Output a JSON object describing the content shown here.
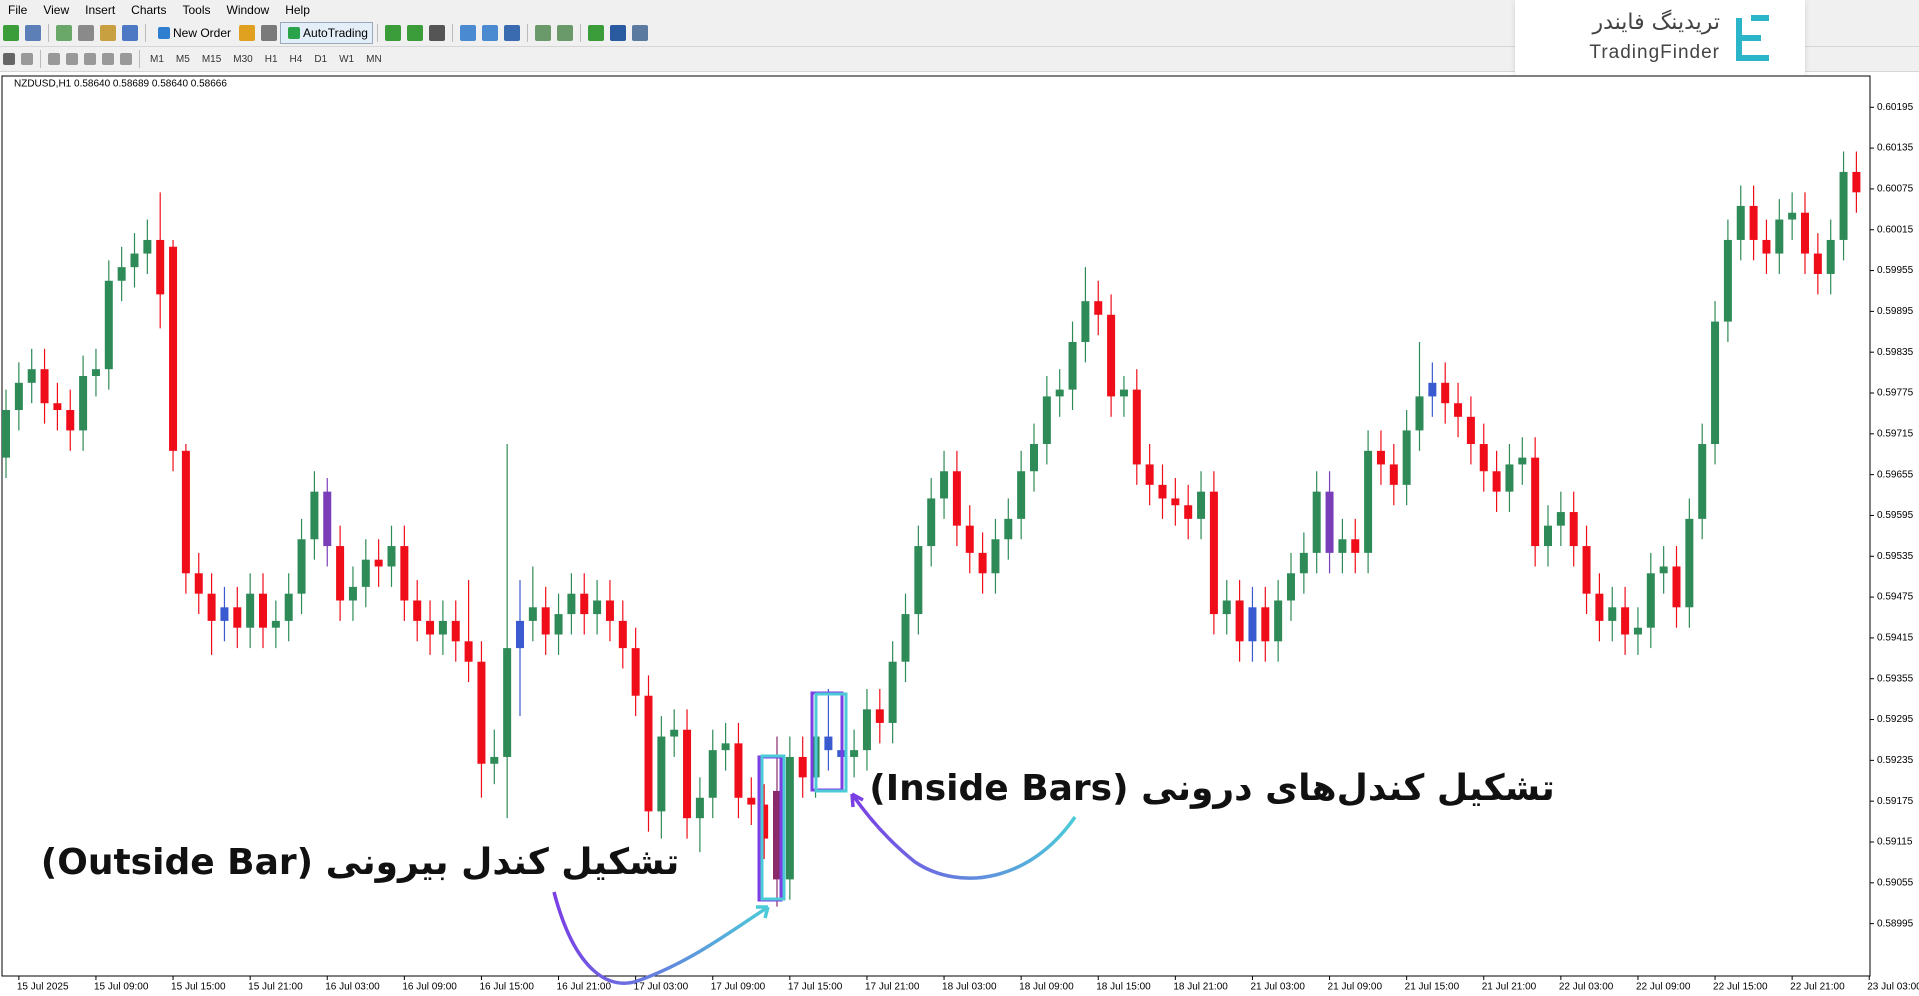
{
  "menu": [
    "File",
    "View",
    "Insert",
    "Charts",
    "Tools",
    "Window",
    "Help"
  ],
  "toolbar": {
    "new_order": "New Order",
    "auto_trading": "AutoTrading",
    "timeframes": [
      "M1",
      "M5",
      "M15",
      "M30",
      "H1",
      "H4",
      "D1",
      "W1",
      "MN"
    ]
  },
  "logo": {
    "fa": "تریدینگ فایندر",
    "en": "TradingFinder"
  },
  "chart_data": {
    "type": "candlestick",
    "symbol_info": "NZDUSD,H1  0.58640 0.58689 0.58640 0.58666",
    "annotations": {
      "inside": "تشکیل کندل‌های درونی (Inside Bars)",
      "outside": "تشکیل کندل بیرونی (Outside Bar)"
    },
    "up_color": "#2e8b57",
    "down_color": "#f00d1a",
    "highlights": [
      {
        "index": 17,
        "color": "#3a5bd0"
      },
      {
        "index": 25,
        "color": "#7a3fb8"
      },
      {
        "index": 40,
        "color": "#3a5bd0"
      },
      {
        "index": 60,
        "color": "#8a2a6a"
      },
      {
        "index": 64,
        "color": "#3a5bd0"
      },
      {
        "index": 65,
        "color": "#3a5bd0"
      },
      {
        "index": 97,
        "color": "#3a5bd0"
      },
      {
        "index": 103,
        "color": "#7a3fb8"
      },
      {
        "index": 111,
        "color": "#3a5bd0"
      }
    ],
    "ylim": [
      0.58918,
      0.60241
    ],
    "yticks": [
      0.60195,
      0.60135,
      0.60075,
      0.60015,
      0.59955,
      0.59895,
      0.59835,
      0.59775,
      0.59715,
      0.59655,
      0.59595,
      0.59535,
      0.59475,
      0.59415,
      0.59355,
      0.59295,
      0.59235,
      0.59175,
      0.59115,
      0.59055,
      0.58995
    ],
    "time_labels": [
      "15 Jul 2025",
      "15 Jul 09:00",
      "15 Jul 15:00",
      "15 Jul 21:00",
      "16 Jul 03:00",
      "16 Jul 09:00",
      "16 Jul 15:00",
      "16 Jul 21:00",
      "17 Jul 03:00",
      "17 Jul 09:00",
      "17 Jul 15:00",
      "17 Jul 21:00",
      "18 Jul 03:00",
      "18 Jul 09:00",
      "18 Jul 15:00",
      "18 Jul 21:00",
      "21 Jul 03:00",
      "21 Jul 09:00",
      "21 Jul 15:00",
      "21 Jul 21:00",
      "22 Jul 03:00",
      "22 Jul 09:00",
      "22 Jul 15:00",
      "22 Jul 21:00",
      "23 Jul 03:00"
    ],
    "candles": [
      [
        0.5968,
        0.5978,
        0.5965,
        0.5975
      ],
      [
        0.5975,
        0.5982,
        0.5972,
        0.5979
      ],
      [
        0.5979,
        0.5984,
        0.5976,
        0.5981
      ],
      [
        0.5981,
        0.5984,
        0.5973,
        0.5976
      ],
      [
        0.5976,
        0.5979,
        0.5972,
        0.5975
      ],
      [
        0.5975,
        0.5978,
        0.5969,
        0.5972
      ],
      [
        0.5972,
        0.5983,
        0.5969,
        0.598
      ],
      [
        0.598,
        0.5984,
        0.5977,
        0.5981
      ],
      [
        0.5981,
        0.5997,
        0.5978,
        0.5994
      ],
      [
        0.5994,
        0.5999,
        0.5991,
        0.5996
      ],
      [
        0.5996,
        0.6001,
        0.5993,
        0.5998
      ],
      [
        0.5998,
        0.6003,
        0.5995,
        0.6
      ],
      [
        0.6,
        0.6007,
        0.5987,
        0.5992
      ],
      [
        0.5999,
        0.6,
        0.5966,
        0.5969
      ],
      [
        0.5969,
        0.597,
        0.5948,
        0.5951
      ],
      [
        0.5951,
        0.5954,
        0.5945,
        0.5948
      ],
      [
        0.5948,
        0.5951,
        0.5939,
        0.5944
      ],
      [
        0.5944,
        0.5949,
        0.5941,
        0.5946
      ],
      [
        0.5946,
        0.5949,
        0.594,
        0.5943
      ],
      [
        0.5943,
        0.5951,
        0.594,
        0.5948
      ],
      [
        0.5948,
        0.5951,
        0.594,
        0.5943
      ],
      [
        0.5943,
        0.5947,
        0.594,
        0.5944
      ],
      [
        0.5944,
        0.5951,
        0.5941,
        0.5948
      ],
      [
        0.5948,
        0.5959,
        0.5945,
        0.5956
      ],
      [
        0.5956,
        0.5966,
        0.5953,
        0.5963
      ],
      [
        0.5963,
        0.5965,
        0.5952,
        0.5955
      ],
      [
        0.5955,
        0.5958,
        0.5944,
        0.5947
      ],
      [
        0.5947,
        0.5952,
        0.5944,
        0.5949
      ],
      [
        0.5949,
        0.5956,
        0.5946,
        0.5953
      ],
      [
        0.5953,
        0.5956,
        0.5949,
        0.5952
      ],
      [
        0.5952,
        0.5958,
        0.5949,
        0.5955
      ],
      [
        0.5955,
        0.5958,
        0.5944,
        0.5947
      ],
      [
        0.5947,
        0.595,
        0.5941,
        0.5944
      ],
      [
        0.5944,
        0.5947,
        0.5939,
        0.5942
      ],
      [
        0.5942,
        0.5947,
        0.5939,
        0.5944
      ],
      [
        0.5944,
        0.5947,
        0.5938,
        0.5941
      ],
      [
        0.5941,
        0.595,
        0.5935,
        0.5938
      ],
      [
        0.5938,
        0.5941,
        0.5918,
        0.5923
      ],
      [
        0.5923,
        0.5928,
        0.592,
        0.5924
      ],
      [
        0.5924,
        0.597,
        0.5915,
        0.594
      ],
      [
        0.594,
        0.595,
        0.593,
        0.5944
      ],
      [
        0.5944,
        0.5952,
        0.5941,
        0.5946
      ],
      [
        0.5946,
        0.5949,
        0.5939,
        0.5942
      ],
      [
        0.5942,
        0.5948,
        0.5939,
        0.5945
      ],
      [
        0.5945,
        0.5951,
        0.5942,
        0.5948
      ],
      [
        0.5948,
        0.5951,
        0.5942,
        0.5945
      ],
      [
        0.5945,
        0.595,
        0.5942,
        0.5947
      ],
      [
        0.5947,
        0.595,
        0.5941,
        0.5944
      ],
      [
        0.5944,
        0.5947,
        0.5937,
        0.594
      ],
      [
        0.594,
        0.5943,
        0.593,
        0.5933
      ],
      [
        0.5933,
        0.5936,
        0.5913,
        0.5916
      ],
      [
        0.5916,
        0.593,
        0.5912,
        0.5927
      ],
      [
        0.5927,
        0.5931,
        0.5924,
        0.5928
      ],
      [
        0.5928,
        0.5931,
        0.5912,
        0.5915
      ],
      [
        0.5915,
        0.5921,
        0.591,
        0.5918
      ],
      [
        0.5918,
        0.5928,
        0.5915,
        0.5925
      ],
      [
        0.5925,
        0.5929,
        0.5922,
        0.5926
      ],
      [
        0.5926,
        0.5929,
        0.5915,
        0.5918
      ],
      [
        0.5918,
        0.5921,
        0.5914,
        0.5917
      ],
      [
        0.5917,
        0.592,
        0.5909,
        0.5912
      ],
      [
        0.5919,
        0.5927,
        0.5902,
        0.5906
      ],
      [
        0.5906,
        0.5927,
        0.5903,
        0.5924
      ],
      [
        0.5924,
        0.5927,
        0.5918,
        0.5921
      ],
      [
        0.5921,
        0.593,
        0.5918,
        0.5927
      ],
      [
        0.5927,
        0.5934,
        0.5922,
        0.5925
      ],
      [
        0.5925,
        0.5927,
        0.5923,
        0.5924
      ],
      [
        0.5924,
        0.5928,
        0.5921,
        0.5925
      ],
      [
        0.5925,
        0.5934,
        0.5922,
        0.5931
      ],
      [
        0.5931,
        0.5934,
        0.5926,
        0.5929
      ],
      [
        0.5929,
        0.5941,
        0.5926,
        0.5938
      ],
      [
        0.5938,
        0.5948,
        0.5935,
        0.5945
      ],
      [
        0.5945,
        0.5958,
        0.5942,
        0.5955
      ],
      [
        0.5955,
        0.5965,
        0.5952,
        0.5962
      ],
      [
        0.5962,
        0.5969,
        0.5959,
        0.5966
      ],
      [
        0.5966,
        0.5969,
        0.5955,
        0.5958
      ],
      [
        0.5958,
        0.5961,
        0.5951,
        0.5954
      ],
      [
        0.5954,
        0.5957,
        0.5948,
        0.5951
      ],
      [
        0.5951,
        0.5959,
        0.5948,
        0.5956
      ],
      [
        0.5956,
        0.5962,
        0.5953,
        0.5959
      ],
      [
        0.5959,
        0.5969,
        0.5956,
        0.5966
      ],
      [
        0.5966,
        0.5973,
        0.5963,
        0.597
      ],
      [
        0.597,
        0.598,
        0.5967,
        0.5977
      ],
      [
        0.5977,
        0.5981,
        0.5974,
        0.5978
      ],
      [
        0.5978,
        0.5988,
        0.5975,
        0.5985
      ],
      [
        0.5985,
        0.5996,
        0.5982,
        0.5991
      ],
      [
        0.5991,
        0.5994,
        0.5986,
        0.5989
      ],
      [
        0.5989,
        0.5992,
        0.5974,
        0.5977
      ],
      [
        0.5977,
        0.598,
        0.5974,
        0.5978
      ],
      [
        0.5978,
        0.5981,
        0.5964,
        0.5967
      ],
      [
        0.5967,
        0.597,
        0.5961,
        0.5964
      ],
      [
        0.5964,
        0.5967,
        0.5959,
        0.5962
      ],
      [
        0.5962,
        0.5965,
        0.5958,
        0.5961
      ],
      [
        0.5961,
        0.5964,
        0.5956,
        0.5959
      ],
      [
        0.5959,
        0.5966,
        0.5956,
        0.5963
      ],
      [
        0.5963,
        0.5966,
        0.5942,
        0.5945
      ],
      [
        0.5945,
        0.595,
        0.5942,
        0.5947
      ],
      [
        0.5947,
        0.595,
        0.5938,
        0.5941
      ],
      [
        0.5941,
        0.5949,
        0.5938,
        0.5946
      ],
      [
        0.5946,
        0.5949,
        0.5938,
        0.5941
      ],
      [
        0.5941,
        0.595,
        0.5938,
        0.5947
      ],
      [
        0.5947,
        0.5954,
        0.5944,
        0.5951
      ],
      [
        0.5951,
        0.5957,
        0.5948,
        0.5954
      ],
      [
        0.5954,
        0.5966,
        0.5951,
        0.5963
      ],
      [
        0.5963,
        0.5966,
        0.5951,
        0.5954
      ],
      [
        0.5954,
        0.5959,
        0.5951,
        0.5956
      ],
      [
        0.5956,
        0.5959,
        0.5951,
        0.5954
      ],
      [
        0.5954,
        0.5972,
        0.5951,
        0.5969
      ],
      [
        0.5969,
        0.5972,
        0.5964,
        0.5967
      ],
      [
        0.5967,
        0.597,
        0.5961,
        0.5964
      ],
      [
        0.5964,
        0.5975,
        0.5961,
        0.5972
      ],
      [
        0.5972,
        0.5985,
        0.5969,
        0.5977
      ],
      [
        0.5977,
        0.5982,
        0.5974,
        0.5979
      ],
      [
        0.5979,
        0.5982,
        0.5973,
        0.5976
      ],
      [
        0.5976,
        0.5979,
        0.5971,
        0.5974
      ],
      [
        0.5974,
        0.5977,
        0.5967,
        0.597
      ],
      [
        0.597,
        0.5973,
        0.5963,
        0.5966
      ],
      [
        0.5966,
        0.5969,
        0.596,
        0.5963
      ],
      [
        0.5963,
        0.597,
        0.596,
        0.5967
      ],
      [
        0.5967,
        0.5971,
        0.5964,
        0.5968
      ],
      [
        0.5968,
        0.5971,
        0.5952,
        0.5955
      ],
      [
        0.5955,
        0.5961,
        0.5952,
        0.5958
      ],
      [
        0.5958,
        0.5963,
        0.5955,
        0.596
      ],
      [
        0.596,
        0.5963,
        0.5952,
        0.5955
      ],
      [
        0.5955,
        0.5958,
        0.5945,
        0.5948
      ],
      [
        0.5948,
        0.5951,
        0.5941,
        0.5944
      ],
      [
        0.5944,
        0.5949,
        0.5941,
        0.5946
      ],
      [
        0.5946,
        0.5949,
        0.5939,
        0.5942
      ],
      [
        0.5942,
        0.5946,
        0.5939,
        0.5943
      ],
      [
        0.5943,
        0.5954,
        0.594,
        0.5951
      ],
      [
        0.5951,
        0.5955,
        0.5948,
        0.5952
      ],
      [
        0.5952,
        0.5955,
        0.5943,
        0.5946
      ],
      [
        0.5946,
        0.5962,
        0.5943,
        0.5959
      ],
      [
        0.5959,
        0.5973,
        0.5956,
        0.597
      ],
      [
        0.597,
        0.5991,
        0.5967,
        0.5988
      ],
      [
        0.5988,
        0.6003,
        0.5985,
        0.6
      ],
      [
        0.6,
        0.6008,
        0.5997,
        0.6005
      ],
      [
        0.6005,
        0.6008,
        0.5997,
        0.6
      ],
      [
        0.6,
        0.6003,
        0.5995,
        0.5998
      ],
      [
        0.5998,
        0.6006,
        0.5995,
        0.6003
      ],
      [
        0.6003,
        0.6007,
        0.6,
        0.6004
      ],
      [
        0.6004,
        0.6007,
        0.5995,
        0.5998
      ],
      [
        0.5998,
        0.6001,
        0.5992,
        0.5995
      ],
      [
        0.5995,
        0.6003,
        0.5992,
        0.6
      ],
      [
        0.6,
        0.6013,
        0.5997,
        0.601
      ],
      [
        0.601,
        0.6013,
        0.6004,
        0.6007
      ]
    ]
  }
}
